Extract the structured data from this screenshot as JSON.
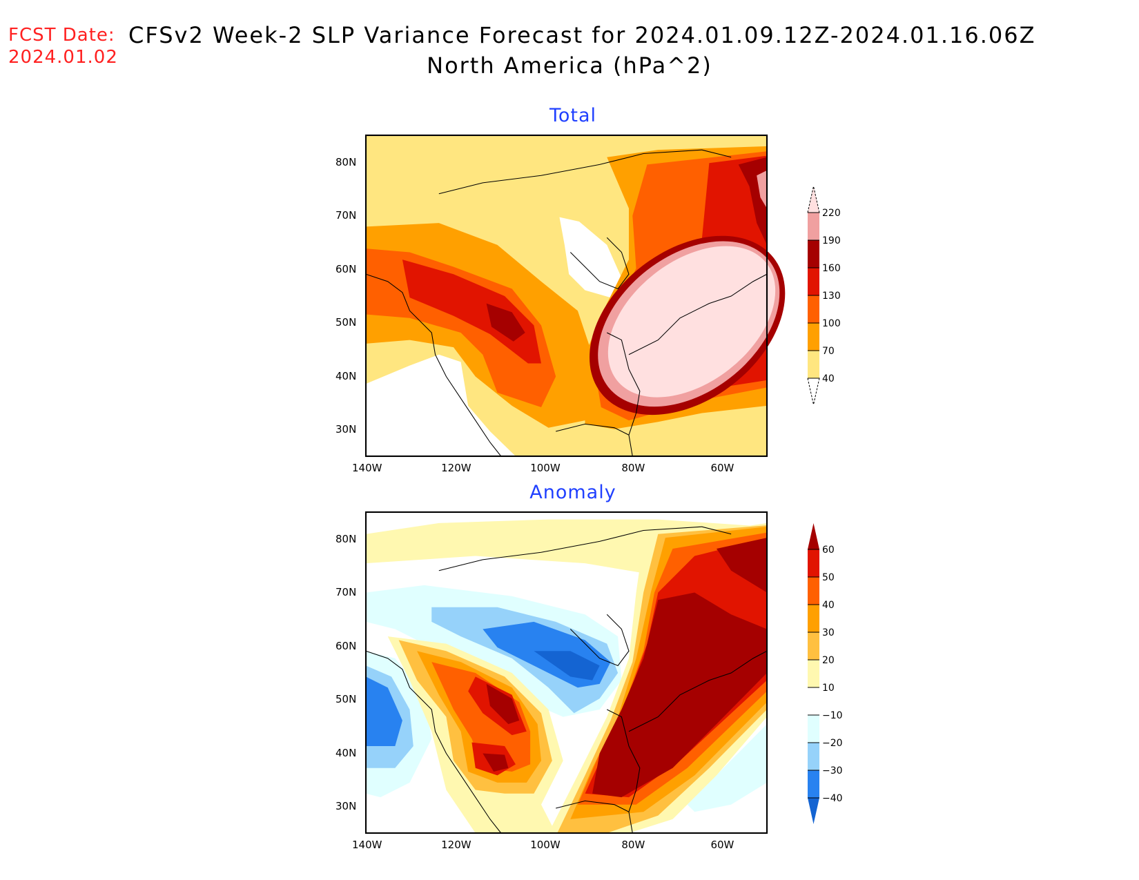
{
  "header": {
    "fcst_label": "FCST Date:",
    "fcst_date": "2024.01.02",
    "title_line1": "CFSv2 Week-2 SLP Variance Forecast for 2024.01.09.12Z-2024.01.16.06Z",
    "title_line2": "North America (hPa^2)"
  },
  "chart_data": [
    {
      "type": "heatmap",
      "title": "Total",
      "region": "North America",
      "units": "hPa^2",
      "xlim": [
        -140,
        -50
      ],
      "ylim": [
        25,
        85
      ],
      "x_ticks": [
        "140W",
        "120W",
        "100W",
        "80W",
        "60W"
      ],
      "y_ticks": [
        "80N",
        "70N",
        "60N",
        "50N",
        "40N",
        "30N"
      ],
      "colorbar": {
        "levels": [
          "220",
          "190",
          "160",
          "130",
          "100",
          "70",
          "40"
        ],
        "colors": [
          "#ffe0e0",
          "#f0a0a0",
          "#a50000",
          "#e11400",
          "#ff6000",
          "#ffa000",
          "#ffe680"
        ],
        "below_color": "#ffffff"
      },
      "features": "Maximum >220 over northeastern US / eastern Canada; secondary max 160-190 over western US / interior northwest; minimum <40 over Hudson Bay and southwest US"
    },
    {
      "type": "heatmap",
      "title": "Anomaly",
      "region": "North America",
      "units": "hPa^2",
      "xlim": [
        -140,
        -50
      ],
      "ylim": [
        25,
        85
      ],
      "x_ticks": [
        "140W",
        "120W",
        "100W",
        "80W",
        "60W"
      ],
      "y_ticks": [
        "80N",
        "70N",
        "60N",
        "50N",
        "40N",
        "30N"
      ],
      "colorbar": {
        "levels": [
          "60",
          "50",
          "40",
          "30",
          "20",
          "10",
          "-10",
          "-20",
          "-30",
          "-40"
        ],
        "colors": [
          "#a50000",
          "#e11400",
          "#ff6000",
          "#ffa000",
          "#ffc040",
          "#fff8b0",
          "#ffffff",
          "#e0ffff",
          "#96d2fa",
          "#2882f0",
          "#1464d2"
        ]
      },
      "features": "Positive anomaly >60 over eastern North America; positive 40-60 over western US; negative -30 to -40 over central Canada and Pacific off west coast"
    }
  ]
}
